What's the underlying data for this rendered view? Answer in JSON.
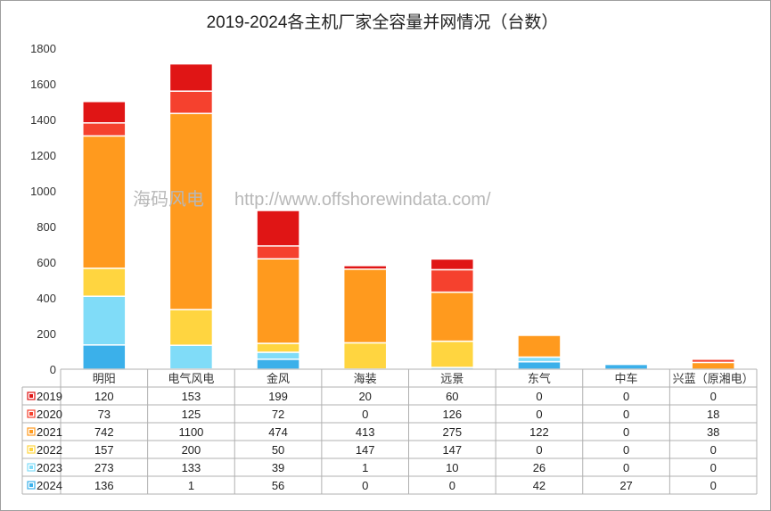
{
  "chart_data": {
    "type": "bar",
    "stacked": true,
    "title": "2019-2024各主机厂家全容量并网情况（台数）",
    "categories": [
      "明阳",
      "电气风电",
      "金风",
      "海装",
      "远景",
      "东气",
      "中车",
      "兴蓝（原湘电）"
    ],
    "series": [
      {
        "name": "2024",
        "color": "#3bb0ea",
        "values": [
          136,
          1,
          56,
          0,
          0,
          42,
          27,
          0
        ]
      },
      {
        "name": "2023",
        "color": "#80dcf8",
        "values": [
          273,
          133,
          39,
          1,
          10,
          26,
          0,
          0
        ]
      },
      {
        "name": "2022",
        "color": "#ffd540",
        "values": [
          157,
          200,
          50,
          147,
          147,
          0,
          0,
          0
        ]
      },
      {
        "name": "2021",
        "color": "#ff9a1e",
        "values": [
          742,
          1100,
          474,
          413,
          275,
          122,
          0,
          38
        ]
      },
      {
        "name": "2020",
        "color": "#f5412e",
        "values": [
          73,
          125,
          72,
          0,
          126,
          0,
          0,
          18
        ]
      },
      {
        "name": "2019",
        "color": "#e01515",
        "values": [
          120,
          153,
          199,
          20,
          60,
          0,
          0,
          0
        ]
      }
    ],
    "table_row_order": [
      "2019",
      "2020",
      "2021",
      "2022",
      "2023",
      "2024"
    ],
    "yticks": [
      "1800",
      "1600",
      "1400",
      "1200",
      "1000",
      "800",
      "600",
      "400",
      "200",
      "0"
    ],
    "ylim": [
      0,
      1800
    ],
    "grid": false,
    "legend": "data-table"
  },
  "watermark": {
    "brand": "海码风电",
    "url": "http://www.offshorewindata.com/"
  }
}
